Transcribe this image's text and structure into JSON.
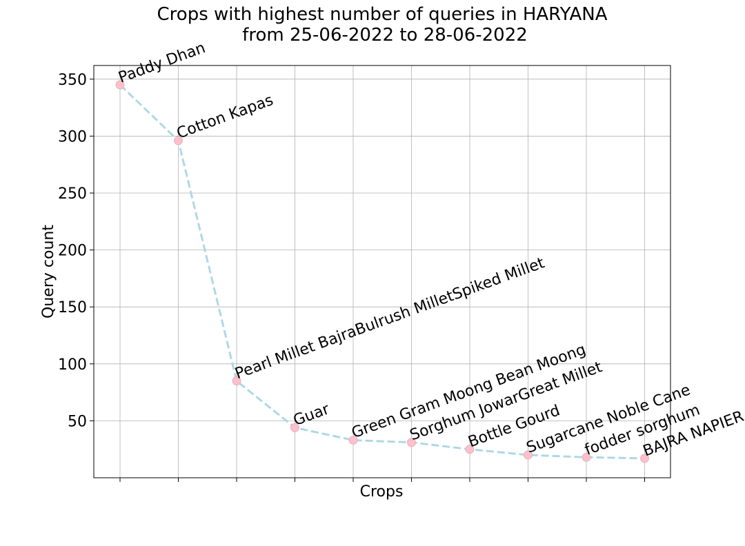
{
  "chart_data": {
    "type": "line",
    "title_line1": "Crops with highest number of queries in HARYANA",
    "title_line2": "from 25-06-2022 to 28-06-2022",
    "xlabel": "Crops",
    "ylabel": "Query count",
    "categories": [
      "Paddy Dhan",
      "Cotton Kapas",
      "Pearl Millet BajraBulrush MilletSpiked Millet",
      "Guar",
      "Green Gram Moong Bean Moong",
      "Sorghum JowarGreat Millet",
      "Bottle Gourd",
      "Sugarcane Noble Cane",
      "fodder sorghum",
      "BAJRA NAPIER"
    ],
    "values": [
      345,
      296,
      85,
      44,
      33,
      31,
      25,
      20,
      18,
      17
    ],
    "ylim": [
      0,
      362
    ],
    "yticks": [
      50,
      100,
      150,
      200,
      250,
      300,
      350
    ],
    "grid": true,
    "line_color": "#add8e6",
    "line_style": "dashed",
    "marker_color": "#ffc0cb",
    "label_rotation_deg": -20
  }
}
